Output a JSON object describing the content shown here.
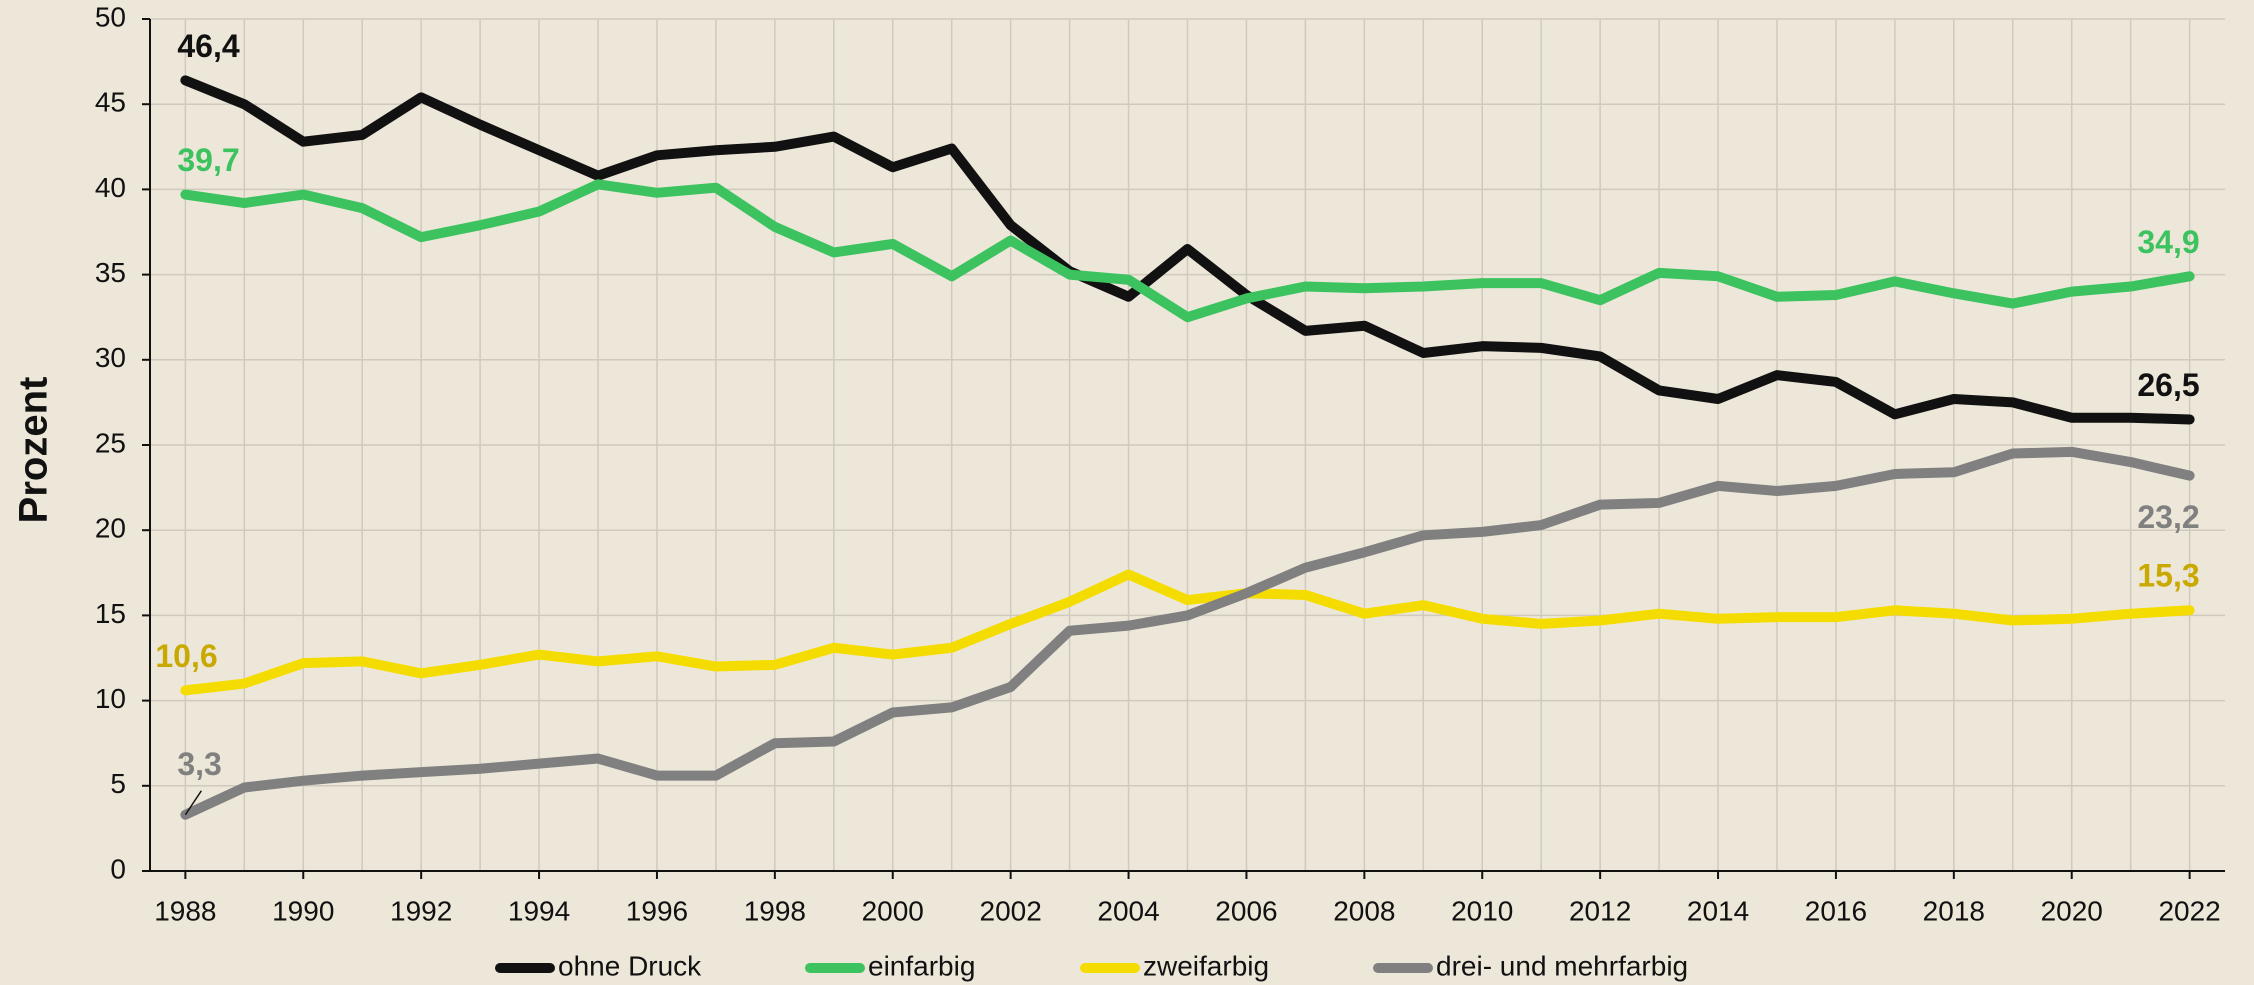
{
  "chart_data": {
    "type": "line",
    "ylabel": "Prozent",
    "x": [
      1988,
      1989,
      1990,
      1991,
      1992,
      1993,
      1994,
      1995,
      1996,
      1997,
      1998,
      1999,
      2000,
      2001,
      2002,
      2003,
      2004,
      2005,
      2006,
      2007,
      2008,
      2009,
      2010,
      2011,
      2012,
      2013,
      2014,
      2015,
      2016,
      2017,
      2018,
      2019,
      2020,
      2021,
      2022
    ],
    "xlim": [
      1987.4,
      2022.6
    ],
    "xticks": [
      1988,
      1990,
      1992,
      1994,
      1996,
      1998,
      2000,
      2002,
      2004,
      2006,
      2008,
      2010,
      2012,
      2014,
      2016,
      2018,
      2020,
      2022
    ],
    "ylim": [
      0,
      50
    ],
    "yticks": [
      0,
      5,
      10,
      15,
      20,
      25,
      30,
      35,
      40,
      45,
      50
    ],
    "grid": true,
    "legend": "bottom",
    "series": [
      {
        "name": "ohne Druck",
        "color": "#111111",
        "label_color": "#111111",
        "values": [
          46.4,
          45.0,
          42.8,
          43.2,
          45.4,
          43.8,
          42.3,
          40.8,
          42.0,
          42.3,
          42.5,
          43.1,
          41.3,
          42.4,
          37.9,
          35.2,
          33.7,
          36.5,
          33.8,
          31.7,
          32.0,
          30.4,
          30.8,
          30.7,
          30.2,
          28.2,
          27.7,
          29.1,
          28.7,
          26.8,
          27.7,
          27.5,
          26.6,
          26.6,
          26.5
        ],
        "value_labels": [
          "46,4",
          null,
          null,
          null,
          null,
          null,
          null,
          null,
          null,
          null,
          null,
          null,
          null,
          null,
          null,
          null,
          null,
          null,
          null,
          null,
          null,
          null,
          null,
          null,
          null,
          null,
          null,
          null,
          null,
          null,
          null,
          null,
          null,
          null,
          "26,5"
        ]
      },
      {
        "name": "einfarbig",
        "color": "#3cc35f",
        "label_color": "#3cc35f",
        "values": [
          39.7,
          39.2,
          39.7,
          38.9,
          37.2,
          37.9,
          38.7,
          40.3,
          39.8,
          40.1,
          37.8,
          36.3,
          36.8,
          34.9,
          37.0,
          35.0,
          34.7,
          32.5,
          33.6,
          34.3,
          34.2,
          34.3,
          34.5,
          34.5,
          33.5,
          35.1,
          34.9,
          33.7,
          33.8,
          34.6,
          33.9,
          33.3,
          34.0,
          34.3,
          34.9
        ],
        "value_labels": [
          "39,7",
          null,
          null,
          null,
          null,
          null,
          null,
          null,
          null,
          null,
          null,
          null,
          null,
          null,
          null,
          null,
          null,
          null,
          null,
          null,
          null,
          null,
          null,
          null,
          null,
          null,
          null,
          null,
          null,
          null,
          null,
          null,
          null,
          null,
          "34,9"
        ]
      },
      {
        "name": "zweifarbig",
        "color": "#f5dc00",
        "label_color": "#c9a900",
        "values": [
          10.6,
          11.0,
          12.2,
          12.3,
          11.6,
          12.1,
          12.7,
          12.3,
          12.6,
          12.0,
          12.1,
          13.1,
          12.7,
          13.1,
          14.5,
          15.8,
          17.4,
          15.9,
          16.3,
          16.2,
          15.1,
          15.6,
          14.8,
          14.5,
          14.7,
          15.1,
          14.8,
          14.9,
          14.9,
          15.3,
          15.1,
          14.7,
          14.8,
          15.1,
          15.3
        ],
        "value_labels": [
          "10,6",
          null,
          null,
          null,
          null,
          null,
          null,
          null,
          null,
          null,
          null,
          null,
          null,
          null,
          null,
          null,
          null,
          null,
          null,
          null,
          null,
          null,
          null,
          null,
          null,
          null,
          null,
          null,
          null,
          null,
          null,
          null,
          null,
          null,
          "15,3"
        ]
      },
      {
        "name": "drei- und mehrfarbig",
        "color": "#808080",
        "label_color": "#808080",
        "values": [
          3.3,
          4.9,
          5.3,
          5.6,
          5.8,
          6.0,
          6.3,
          6.6,
          5.6,
          5.6,
          7.5,
          7.6,
          9.3,
          9.6,
          10.8,
          14.1,
          14.4,
          15.0,
          16.3,
          17.8,
          18.7,
          19.7,
          19.9,
          20.3,
          21.5,
          21.6,
          22.6,
          22.3,
          22.6,
          23.3,
          23.4,
          24.5,
          24.6,
          24.0,
          23.2
        ],
        "value_labels": [
          "3,3",
          null,
          null,
          null,
          null,
          null,
          null,
          null,
          null,
          null,
          null,
          null,
          null,
          null,
          null,
          null,
          null,
          null,
          null,
          null,
          null,
          null,
          null,
          null,
          null,
          null,
          null,
          null,
          null,
          null,
          null,
          null,
          null,
          null,
          "23,2"
        ]
      }
    ]
  }
}
